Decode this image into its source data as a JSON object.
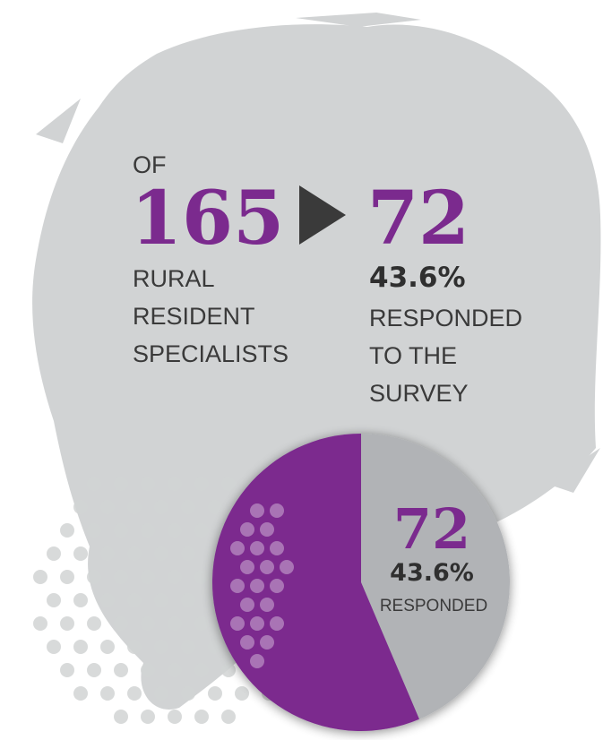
{
  "header": {
    "of": "OF",
    "total": "165",
    "total_lines": [
      "RURAL",
      "RESIDENT",
      "SPECIALISTS"
    ],
    "responded": "72",
    "responded_pct": "43.6%",
    "responded_lines": [
      "RESPONDED",
      "TO THE",
      "SURVEY"
    ]
  },
  "chart_data": {
    "type": "pie",
    "categories": [
      "RESPONDED",
      null
    ],
    "values": [
      43.6,
      56.4
    ],
    "value_labels": [
      "43.6%",
      null
    ],
    "count_labels": [
      "72",
      null
    ],
    "colors": [
      "#b1b3b6",
      "#7b2a8e"
    ]
  }
}
